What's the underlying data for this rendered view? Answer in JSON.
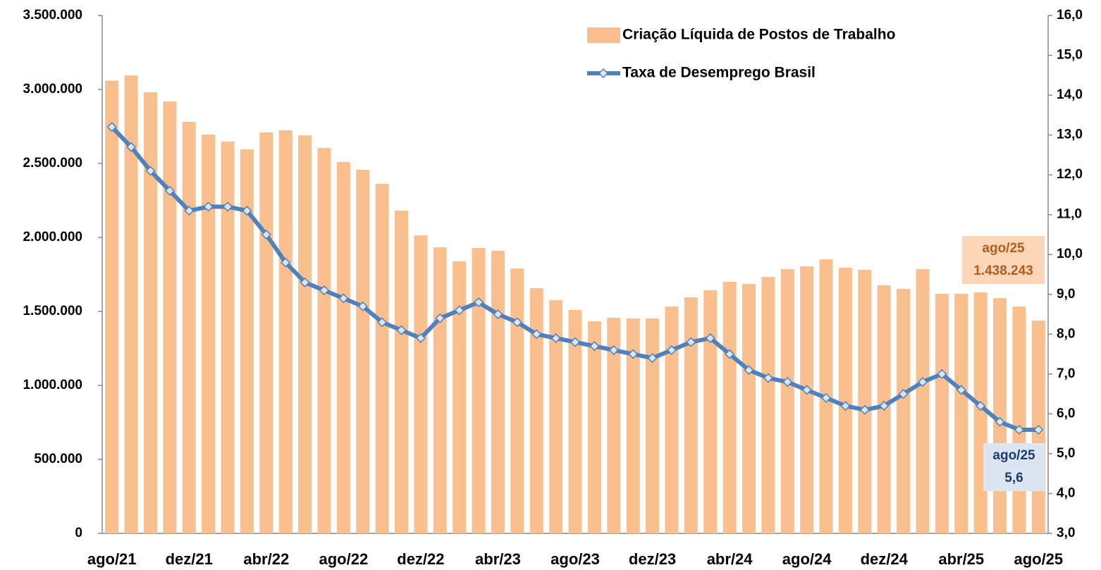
{
  "chart_data": {
    "type": "bar-line",
    "categories": [
      "ago/21",
      null,
      null,
      null,
      "dez/21",
      null,
      null,
      null,
      "abr/22",
      null,
      null,
      null,
      "ago/22",
      null,
      null,
      null,
      "dez/22",
      null,
      null,
      null,
      "abr/23",
      null,
      null,
      null,
      "ago/23",
      null,
      null,
      null,
      "dez/23",
      null,
      null,
      null,
      "abr/24",
      null,
      null,
      null,
      "ago/24",
      null,
      null,
      null,
      "dez/24",
      null,
      null,
      null,
      "abr/25",
      null,
      null,
      null,
      "ago/25"
    ],
    "series": [
      {
        "name": "Criação Líquida de Postos de Trabalho",
        "type": "bar",
        "axis": "y",
        "color": "#f9bf8f",
        "values": [
          3060000,
          3095000,
          2981000,
          2919000,
          2781000,
          2695000,
          2648000,
          2595000,
          2710000,
          2724000,
          2690000,
          2605000,
          2510000,
          2457000,
          2362000,
          2181000,
          2014000,
          1933000,
          1838000,
          1929000,
          1910000,
          1790000,
          1657000,
          1576000,
          1510000,
          1433000,
          1457000,
          1452000,
          1452000,
          1533000,
          1595000,
          1643000,
          1700000,
          1686000,
          1733000,
          1786000,
          1805000,
          1852000,
          1795000,
          1781000,
          1676000,
          1652000,
          1786000,
          1619000,
          1619000,
          1629000,
          1590000,
          1533000,
          1438243
        ]
      },
      {
        "name": "Taxa de Desemprego Brasil",
        "type": "line",
        "axis": "y2",
        "color": "#4f81bd",
        "values": [
          13.2,
          12.7,
          12.1,
          11.6,
          11.1,
          11.2,
          11.2,
          11.1,
          10.5,
          9.8,
          9.3,
          9.1,
          8.9,
          8.7,
          8.3,
          8.1,
          7.9,
          8.4,
          8.6,
          8.8,
          8.5,
          8.3,
          8.0,
          7.9,
          7.8,
          7.7,
          7.6,
          7.5,
          7.4,
          7.6,
          7.8,
          7.9,
          7.5,
          7.1,
          6.9,
          6.8,
          6.6,
          6.4,
          6.2,
          6.1,
          6.2,
          6.5,
          6.8,
          7.0,
          6.6,
          6.2,
          5.8,
          5.6,
          5.6
        ]
      }
    ],
    "ylim": [
      0,
      3500000
    ],
    "yticks": [
      0,
      {
        "value": 500000,
        "label": "500.000"
      },
      {
        "value": 1000000,
        "label": "1.000.000"
      },
      {
        "value": 1500000,
        "label": "1.500.000"
      },
      {
        "value": 2000000,
        "label": "2.000.000"
      },
      {
        "value": 2500000,
        "label": "2.500.000"
      },
      {
        "value": 3000000,
        "label": "3.000.000"
      },
      {
        "value": 3500000,
        "label": "3.500.000"
      }
    ],
    "y2lim": [
      3,
      16
    ],
    "y2ticks": [
      {
        "value": 3,
        "label": "3,0"
      },
      {
        "value": 4,
        "label": "4,0"
      },
      {
        "value": 5,
        "label": "5,0"
      },
      {
        "value": 6,
        "label": "6,0"
      },
      {
        "value": 7,
        "label": "7,0"
      },
      {
        "value": 8,
        "label": "8,0"
      },
      {
        "value": 9,
        "label": "9,0"
      },
      {
        "value": 10,
        "label": "10,0"
      },
      {
        "value": 11,
        "label": "11,0"
      },
      {
        "value": 12,
        "label": "12,0"
      },
      {
        "value": 13,
        "label": "13,0"
      },
      {
        "value": 14,
        "label": "14,0"
      },
      {
        "value": 15,
        "label": "15,0"
      },
      {
        "value": 16,
        "label": "16,0"
      }
    ],
    "annotations": [
      {
        "lines": [
          "ago/25",
          "1.438.243"
        ],
        "background": "#fbd5b5",
        "color": "#b05e1e"
      },
      {
        "lines": [
          "ago/25",
          "5,6"
        ],
        "background": "#dce6f2",
        "color": "#1f3a6e"
      }
    ]
  }
}
